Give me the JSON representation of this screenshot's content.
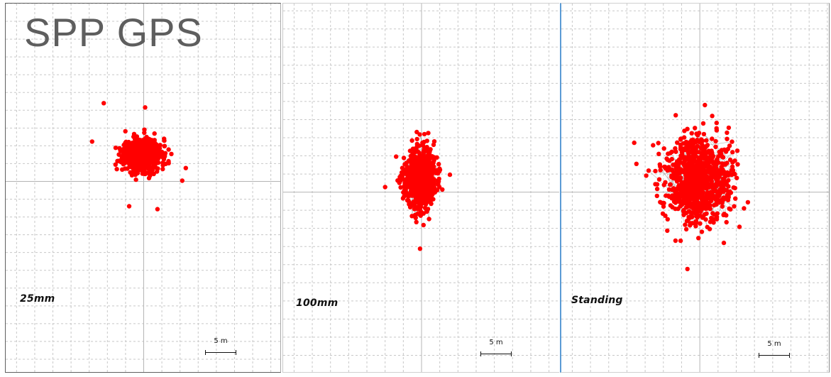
{
  "title": "SPP GPS",
  "scale_label": "5 m",
  "colors": {
    "points": "#ff0000",
    "track": "#9a9a9a",
    "grid": "#c8c8c8",
    "axis": "#b4b4b4"
  },
  "panels": [
    {
      "label": "25mm",
      "scale_label": "5 m"
    },
    {
      "label": "100mm",
      "scale_label": "5 m"
    },
    {
      "label": "Standing",
      "scale_label": "5 m"
    }
  ],
  "chart_data": [
    {
      "type": "scatter",
      "title": "25mm",
      "xlabel": "",
      "ylabel": "",
      "units": "m",
      "grid": true,
      "xlim": [
        -19,
        19
      ],
      "ylim": [
        -27,
        25
      ],
      "scale_bar_m": 5,
      "center": [
        -0.2,
        3.7
      ],
      "spread_sd": [
        1.3,
        1.15
      ],
      "n_points": 700,
      "connecting_lines": false,
      "outliers": [
        [
          -5.5,
          11.0
        ],
        [
          0.2,
          10.4
        ],
        [
          -7.1,
          5.6
        ],
        [
          -2.0,
          -3.5
        ],
        [
          1.9,
          -3.9
        ],
        [
          5.3,
          0.1
        ]
      ],
      "seed": 11
    },
    {
      "type": "scatter",
      "title": "100mm",
      "xlabel": "",
      "ylabel": "",
      "units": "m",
      "grid": true,
      "xlim": [
        -19,
        19
      ],
      "ylim": [
        -25,
        26
      ],
      "scale_bar_m": 5,
      "center": [
        -0.2,
        1.8
      ],
      "spread_sd": [
        1.05,
        2.0
      ],
      "n_points": 800,
      "connecting_lines": true,
      "outliers": [
        [
          -0.2,
          -7.8
        ],
        [
          -5.0,
          0.7
        ],
        [
          3.9,
          2.4
        ],
        [
          0.4,
          8.0
        ]
      ],
      "seed": 23
    },
    {
      "type": "scatter",
      "title": "Standing",
      "xlabel": "",
      "ylabel": "",
      "units": "m",
      "grid": true,
      "xlim": [
        -19,
        18
      ],
      "ylim": [
        -25,
        26
      ],
      "scale_bar_m": 5,
      "center": [
        -0.2,
        1.8
      ],
      "spread_sd": [
        2.2,
        2.9
      ],
      "n_points": 900,
      "connecting_lines": true,
      "outliers": [
        [
          -8.7,
          3.9
        ],
        [
          -9.0,
          6.8
        ],
        [
          6.6,
          -1.4
        ],
        [
          -1.7,
          -10.6
        ],
        [
          0.7,
          12.0
        ],
        [
          -3.3,
          10.6
        ],
        [
          3.3,
          -7.0
        ]
      ],
      "seed": 37
    }
  ]
}
